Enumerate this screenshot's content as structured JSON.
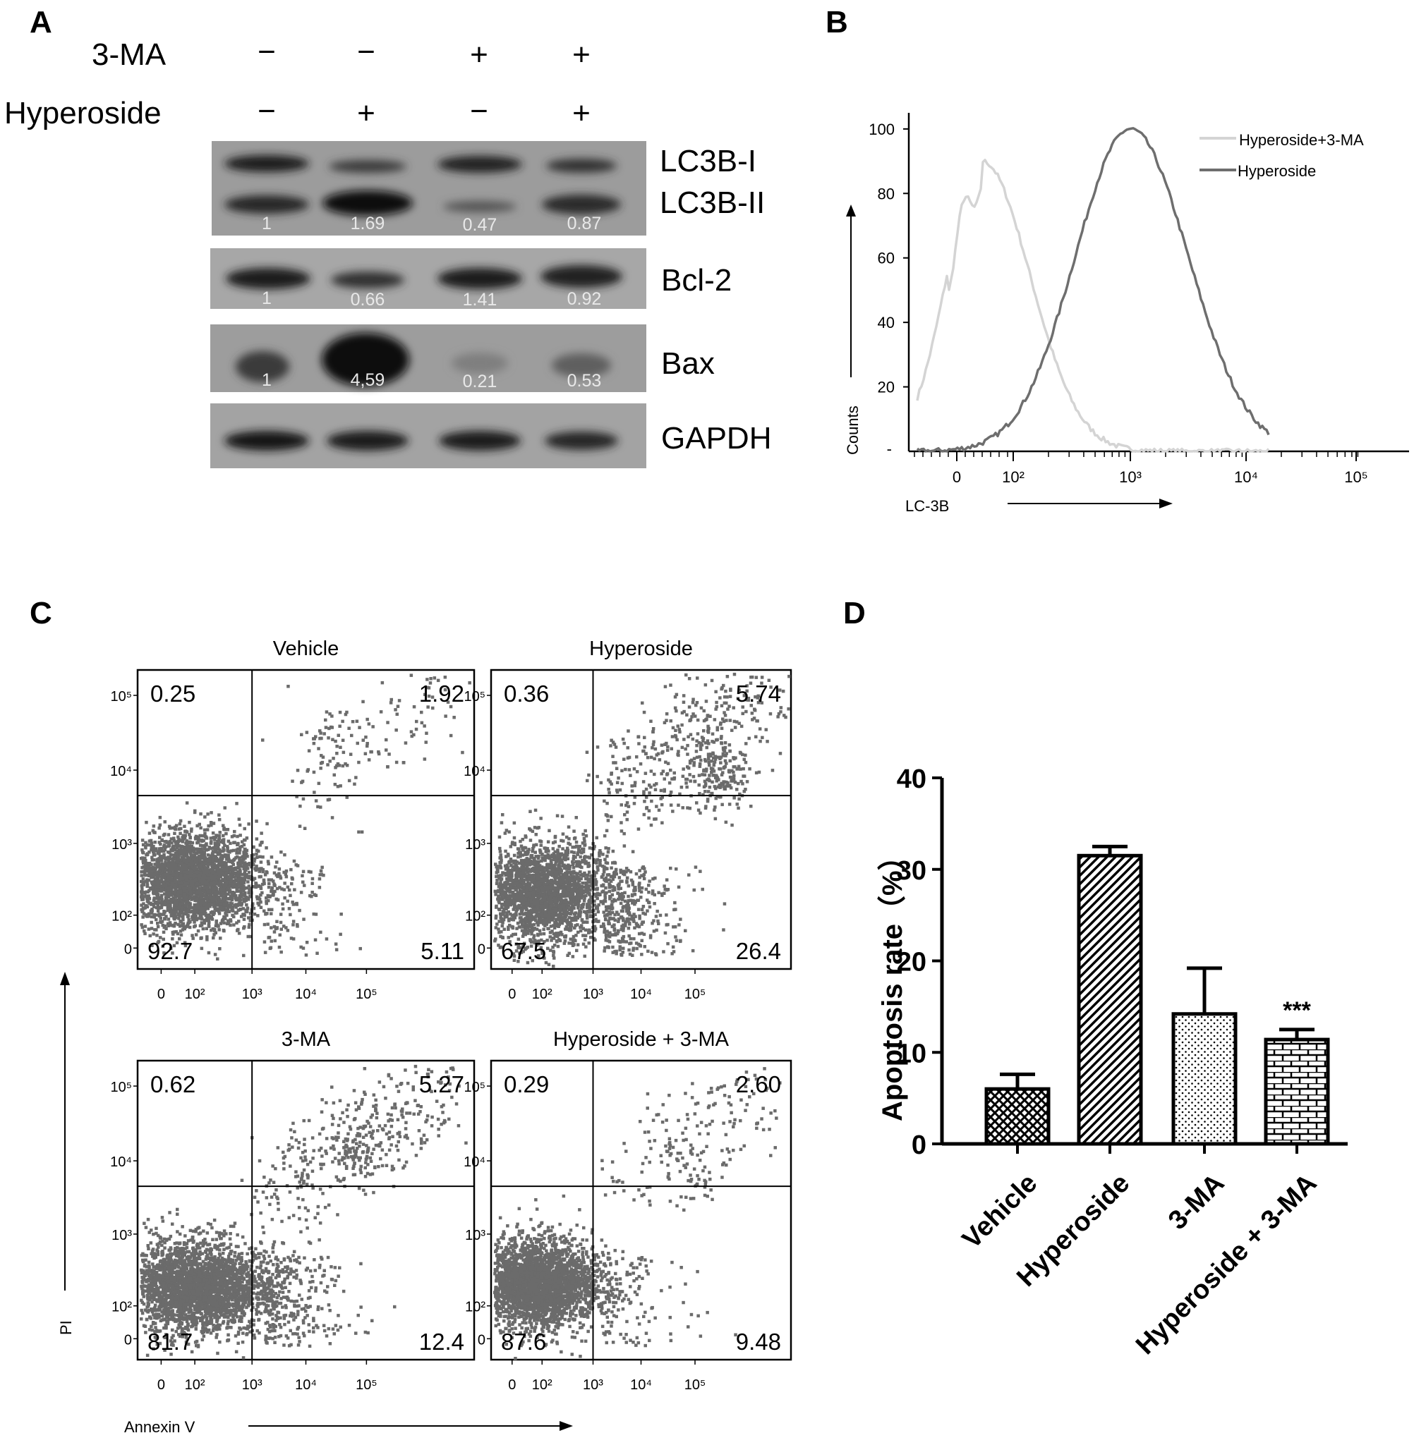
{
  "panels": {
    "a": "A",
    "b": "B",
    "c": "C",
    "d": "D"
  },
  "western_blot": {
    "row_labels": [
      "3-MA",
      "Hyperoside"
    ],
    "treatment_signs": [
      [
        "−",
        "−",
        "+",
        "+"
      ],
      [
        "−",
        "+",
        "−",
        "+"
      ]
    ],
    "bands": [
      "LC3B-I",
      "LC3B-II",
      "Bcl-2",
      "Bax",
      "GAPDH"
    ],
    "quantification": {
      "LC3B": [
        "1",
        "1.69",
        "0.47",
        "0.87"
      ],
      "Bcl-2": [
        "1",
        "0.66",
        "1.41",
        "0.92"
      ],
      "Bax": [
        "1",
        "4,59",
        "0.21",
        "0.53"
      ]
    }
  },
  "chart_data": [
    {
      "type": "line",
      "panel": "B",
      "xlabel": "LC-3B",
      "ylabel": "Counts",
      "x_scale": "log",
      "x_tick_labels": [
        "0",
        "10²",
        "10³",
        "10⁴",
        "10⁵"
      ],
      "y_tick_labels": [
        "20",
        "40",
        "60",
        "80",
        "100"
      ],
      "ylim": [
        0,
        105
      ],
      "legend_position": "top-right",
      "series": [
        {
          "name": "Hyperoside+3-MA",
          "color": "#d4d4d4",
          "peak_x": 45,
          "peak_y": 90
        },
        {
          "name": "Hyperoside",
          "color": "#6e6e6e",
          "peak_x": 1000,
          "peak_y": 100
        }
      ]
    },
    {
      "type": "scatter",
      "panel": "C",
      "xlabel": "Annexin V",
      "ylabel": "PI",
      "x_tick_labels": [
        "0",
        "10²",
        "10³",
        "10⁴",
        "10⁵"
      ],
      "y_tick_labels": [
        "0",
        "10²",
        "10³",
        "10⁴",
        "10⁵"
      ],
      "gate_x": 1000,
      "gate_y": 1000,
      "plots": [
        {
          "title": "Vehicle",
          "quadrants": {
            "upper_left": "0.25",
            "upper_right": "1.92",
            "lower_left": "92.7",
            "lower_right": "5.11"
          }
        },
        {
          "title": "Hyperoside",
          "quadrants": {
            "upper_left": "0.36",
            "upper_right": "5.74",
            "lower_left": "67.5",
            "lower_right": "26.4"
          }
        },
        {
          "title": "3-MA",
          "quadrants": {
            "upper_left": "0.62",
            "upper_right": "5.27",
            "lower_left": "81.7",
            "lower_right": "12.4"
          }
        },
        {
          "title": "Hyperoside + 3-MA",
          "quadrants": {
            "upper_left": "0.29",
            "upper_right": "2.60",
            "lower_left": "87.6",
            "lower_right": "9.48"
          }
        }
      ]
    },
    {
      "type": "bar",
      "panel": "D",
      "ylabel": "Apoptosis rate（%）",
      "categories": [
        "Vehicle",
        "Hyperoside",
        "3-MA",
        "Hyperoside + 3-MA"
      ],
      "values": [
        6.0,
        31.5,
        14.2,
        11.4
      ],
      "errors": [
        1.6,
        1.0,
        5.0,
        1.1
      ],
      "ylim": [
        0,
        40
      ],
      "y_ticks": [
        "0",
        "10",
        "20",
        "30",
        "40"
      ],
      "annotation": "***"
    }
  ]
}
